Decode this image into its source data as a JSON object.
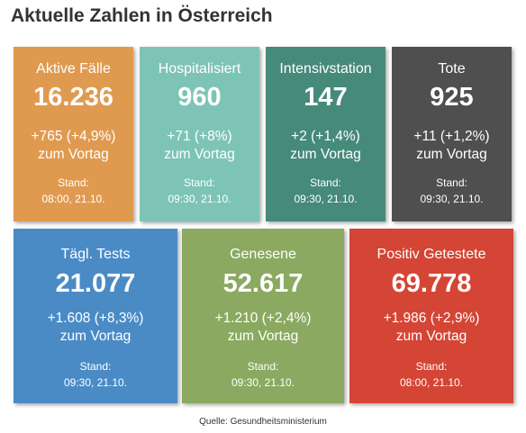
{
  "title": "Aktuelle Zahlen in Österreich",
  "cards": [
    {
      "label": "Aktive Fälle",
      "value": "16.236",
      "change": "+765 (+4,9%)",
      "change_suffix": "zum Vortag",
      "stand_label": "Stand:",
      "stand_time": "08:00, 21.10.",
      "color": "#e09a50"
    },
    {
      "label": "Hospitalisiert",
      "value": "960",
      "change": "+71 (+8%)",
      "change_suffix": "zum Vortag",
      "stand_label": "Stand:",
      "stand_time": "09:30, 21.10.",
      "color": "#7dc4b6"
    },
    {
      "label": "Intensivstation",
      "value": "147",
      "change": "+2 (+1,4%)",
      "change_suffix": "zum Vortag",
      "stand_label": "Stand:",
      "stand_time": "09:30, 21.10.",
      "color": "#468a7a"
    },
    {
      "label": "Tote",
      "value": "925",
      "change": "+11 (+1,2%)",
      "change_suffix": "zum Vortag",
      "stand_label": "Stand:",
      "stand_time": "09:30, 21.10.",
      "color": "#4f4f4f"
    },
    {
      "label": "Tägl. Tests",
      "value": "21.077",
      "change": "+1.608 (+8,3%)",
      "change_suffix": "zum Vortag",
      "stand_label": "Stand:",
      "stand_time": "09:30, 21.10.",
      "color": "#4a8bc6"
    },
    {
      "label": "Genesene",
      "value": "52.617",
      "change": "+1.210 (+2,4%)",
      "change_suffix": "zum Vortag",
      "stand_label": "Stand:",
      "stand_time": "09:30, 21.10.",
      "color": "#8ba960"
    },
    {
      "label": "Positiv Getestete",
      "value": "69.778",
      "change": "+1.986 (+2,9%)",
      "change_suffix": "zum Vortag",
      "stand_label": "Stand:",
      "stand_time": "08:00, 21.10.",
      "color": "#d44535"
    }
  ],
  "source": "Quelle: Gesundheitsministerium"
}
